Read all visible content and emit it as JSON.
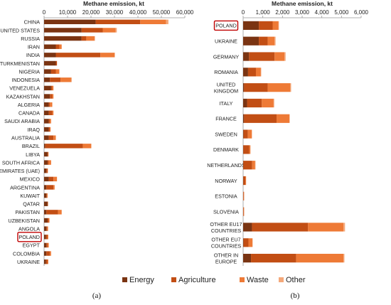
{
  "figure": {
    "legend": [
      {
        "label": "Energy",
        "color": "#7a3412"
      },
      {
        "label": "Agriculture",
        "color": "#c24e14"
      },
      {
        "label": "Waste",
        "color": "#ee7a36"
      },
      {
        "label": "Other",
        "color": "#f4a87a"
      }
    ],
    "panel_labels": [
      "(a)",
      "(b)"
    ],
    "highlight_color": "#c00000"
  },
  "chart_data": [
    {
      "type": "bar",
      "orientation": "horizontal",
      "stacked": true,
      "xlabel": "Methane emission, kt",
      "xlim": [
        0,
        60000
      ],
      "xticks": [
        "0",
        "10,000",
        "20,000",
        "30,000",
        "40,000",
        "50,000",
        "60,000"
      ],
      "highlight": "POLAND",
      "categories": [
        "CHINA",
        "UNITED STATES",
        "RUSSIA",
        "IRAN",
        "INDIA",
        "TURKMENISTAN",
        "NIGERIA",
        "INDONESIA",
        "VENEZUELA",
        "KAZAKHSTAN",
        "ALGERIA",
        "CANADA",
        "SAUDI ARABIA",
        "IRAQ",
        "AUSTRALIA",
        "BRAZIL",
        "LIBYA",
        "SOUTH AFRICA",
        "EMIRATES (UAE)",
        "MEXICO",
        "ARGENTINA",
        "KUWAIT",
        "QATAR",
        "PAKISTAN",
        "UZBEKISTAN",
        "ANGOLA",
        "POLAND",
        "EGYPT",
        "COLOMBIA",
        "UKRAINE"
      ],
      "series": [
        {
          "name": "Energy",
          "values": [
            22000,
            16000,
            16000,
            5000,
            5000,
            5000,
            3000,
            2500,
            3000,
            2500,
            2000,
            2000,
            2000,
            2000,
            2000,
            500,
            1500,
            1500,
            1000,
            2000,
            1000,
            1000,
            1500,
            1000,
            1500,
            1000,
            800,
            1000,
            1000,
            800
          ]
        },
        {
          "name": "Agriculture",
          "values": [
            19000,
            9000,
            2000,
            1500,
            19000,
            500,
            2000,
            4500,
            500,
            1000,
            500,
            1500,
            500,
            500,
            2000,
            16000,
            200,
            500,
            500,
            2000,
            3000,
            200,
            100,
            5000,
            500,
            400,
            700,
            500,
            1500,
            700
          ]
        },
        {
          "name": "Waste",
          "values": [
            11000,
            5500,
            3500,
            1000,
            6000,
            0,
            1500,
            4500,
            500,
            500,
            1000,
            500,
            500,
            300,
            1000,
            3500,
            200,
            1000,
            100,
            1500,
            500,
            300,
            100,
            1500,
            300,
            300,
            300,
            500,
            500,
            300
          ]
        },
        {
          "name": "Other",
          "values": [
            1000,
            500,
            200,
            0,
            200,
            0,
            0,
            300,
            0,
            0,
            0,
            0,
            0,
            0,
            0,
            200,
            0,
            0,
            0,
            0,
            0,
            0,
            0,
            0,
            0,
            0,
            0,
            0,
            0,
            0
          ]
        }
      ]
    },
    {
      "type": "bar",
      "orientation": "horizontal",
      "stacked": true,
      "xlabel": "Methane emission, kt",
      "xlim": [
        0,
        6000
      ],
      "xticks": [
        "0",
        "1,000",
        "2,000",
        "3,000",
        "4,000",
        "5,000",
        "6,000"
      ],
      "highlight": "POLAND",
      "categories": [
        "POLAND",
        "UKRAINE",
        "GERMANY",
        "ROMANIA",
        "UNITED KINGDOM",
        "ITALY",
        "FRANCE",
        "SWEDEN",
        "DENMARK",
        "NETHERLANDS",
        "NORWAY",
        "ESTONIA",
        "SLOVENIA",
        "OTHER EU17 COUNTRIES",
        "OTHER EU7 COUNTRIES",
        "OTHER IN EUROPE"
      ],
      "series": [
        {
          "name": "Energy",
          "values": [
            800,
            800,
            300,
            250,
            50,
            200,
            50,
            20,
            10,
            10,
            10,
            0,
            0,
            450,
            20,
            400
          ]
        },
        {
          "name": "Agriculture",
          "values": [
            700,
            450,
            1300,
            400,
            1200,
            750,
            1650,
            220,
            300,
            450,
            100,
            30,
            30,
            2850,
            250,
            2300
          ]
        },
        {
          "name": "Waste",
          "values": [
            300,
            350,
            500,
            250,
            1150,
            600,
            650,
            200,
            60,
            150,
            40,
            20,
            20,
            1800,
            200,
            2400
          ]
        },
        {
          "name": "Other",
          "values": [
            20,
            50,
            60,
            20,
            40,
            30,
            20,
            10,
            0,
            20,
            0,
            0,
            0,
            80,
            10,
            50
          ]
        }
      ]
    }
  ]
}
